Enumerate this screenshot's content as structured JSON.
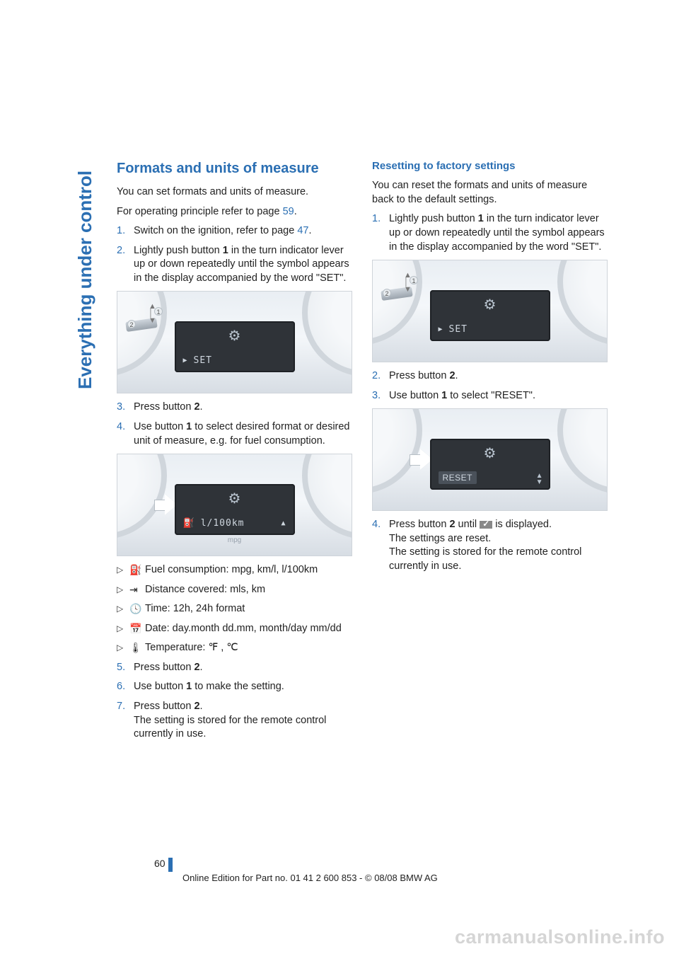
{
  "side_label": "Everything under control",
  "page_number": "60",
  "footer": "Online Edition for Part no. 01 41 2 600 853 - © 08/08 BMW AG",
  "watermark": "carmanualsonline.info",
  "left": {
    "h1": "Formats and units of measure",
    "p1": "You can set formats and units of measure.",
    "p2_a": "For operating principle refer to page ",
    "p2_link": "59",
    "p2_b": ".",
    "s1_a": "Switch on the ignition, refer to page ",
    "s1_link": "47",
    "s1_b": ".",
    "s2_a": "Lightly push button ",
    "s2_bold": "1",
    "s2_b": " in the turn indicator lever up or down repeatedly until the symbol appears in the display accompanied by the word \"SET\".",
    "fig1_label": "SET",
    "s3_a": "Press button ",
    "s3_bold": "2",
    "s3_b": ".",
    "s4_a": "Use button ",
    "s4_bold": "1",
    "s4_b": " to select desired format or desired unit of measure, e.g. for fuel consumption.",
    "fig2_label": "l/100km",
    "fig2_sub": "mpg",
    "b1_sym": "⛽",
    "b1": "Fuel consumption: mpg, km/l, l/100km",
    "b2_sym": "⇥",
    "b2": "Distance covered: mls, km",
    "b3_sym": "🕓",
    "b3": "Time: 12h, 24h format",
    "b4_sym": "📅",
    "b4": "Date: day.month dd.mm, month/day mm/dd",
    "b5_sym": "🌡",
    "b5": "Temperature: ℉ , ℃",
    "s5_a": "Press button ",
    "s5_bold": "2",
    "s5_b": ".",
    "s6_a": "Use button ",
    "s6_bold": "1",
    "s6_b": " to make the setting.",
    "s7_a": "Press button ",
    "s7_bold": "2",
    "s7_b": ".",
    "s7_c": "The setting is stored for the remote control currently in use."
  },
  "right": {
    "h2": "Resetting to factory settings",
    "p1": "You can reset the formats and units of measure back to the default settings.",
    "s1_a": "Lightly push button ",
    "s1_bold": "1",
    "s1_b": " in the turn indicator lever up or down repeatedly until the symbol appears in the display accompanied by the word \"SET\".",
    "fig1_label": "SET",
    "s2_a": "Press button ",
    "s2_bold": "2",
    "s2_b": ".",
    "s3_a": "Use button ",
    "s3_bold": "1",
    "s3_b": " to select \"RESET\".",
    "fig2_label": "RESET",
    "s4_a": "Press button ",
    "s4_bold": "2",
    "s4_b": " until ",
    "s4_c": " is displayed.",
    "s4_d": "The settings are reset.",
    "s4_e": "The setting is stored for the remote control currently in use."
  }
}
